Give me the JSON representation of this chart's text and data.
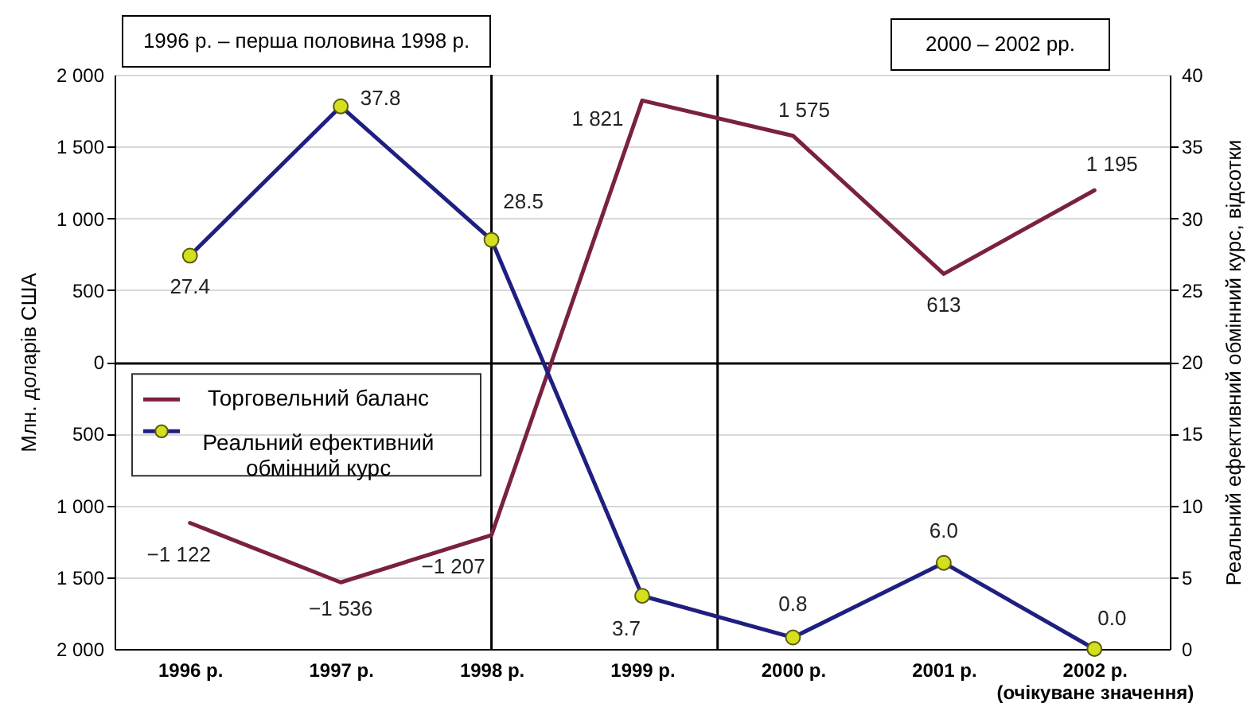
{
  "chart_data": {
    "type": "line",
    "annotations": [
      "1996 р. – перша половина 1998 р.",
      "2000 – 2002 рр."
    ],
    "ylabel": "Млн. доларів США",
    "y2label": "Реальний ефективний обмінний курс, відсотки",
    "x": [
      1996,
      1997,
      1998,
      1999,
      2000,
      2001,
      2002
    ],
    "xlim": [
      1995.5,
      2002.5
    ],
    "xticks": [
      {
        "value": 1996,
        "label": "1996 р."
      },
      {
        "value": 1997,
        "label": "1997 р."
      },
      {
        "value": 1998,
        "label": "1998 р."
      },
      {
        "value": 1999,
        "label": "1999 р."
      },
      {
        "value": 2000,
        "label": "2000 р."
      },
      {
        "value": 2001,
        "label": "2001 р."
      },
      {
        "value": 2002,
        "label": "2002 р.\n(очікуване значення)"
      }
    ],
    "ylim": [
      -2000,
      2000
    ],
    "yticks": [
      {
        "value": -2000,
        "label": "2 000"
      },
      {
        "value": -1500,
        "label": "1 500"
      },
      {
        "value": -1000,
        "label": "1 000"
      },
      {
        "value": -500,
        "label": "500"
      },
      0,
      500,
      {
        "value": 1000,
        "label": "1 000"
      },
      {
        "value": 1500,
        "label": "1 500"
      },
      {
        "value": 2000,
        "label": "2 000"
      }
    ],
    "y2lim": [
      0,
      40
    ],
    "y2ticks": [
      0,
      5,
      10,
      15,
      20,
      25,
      30,
      35,
      40
    ],
    "series": [
      {
        "name": "Торговельний баланс",
        "color": "#7a2142",
        "marker": "none",
        "values": [
          -1122,
          -1536,
          -1207,
          1821,
          1575,
          613,
          1195
        ],
        "value_labels": [
          "−1 122",
          "−1 536",
          "−1 207",
          "1 821",
          "1 575",
          "613",
          "1 195"
        ]
      },
      {
        "name": "Реальний ефективний обмінний курс",
        "color": "#1f1f80",
        "axis": "y2",
        "marker": "circle",
        "values": [
          27.4,
          37.8,
          28.5,
          3.7,
          0.8,
          6.0,
          0.0
        ],
        "value_labels": [
          "27.4",
          "37.8",
          "28.5",
          "3.7",
          "0.8",
          "6.0",
          "0.0"
        ]
      }
    ],
    "ref_lines": [
      {
        "axis": "x",
        "value": 1998,
        "color": "#000000"
      },
      {
        "axis": "x",
        "value": 1999.5,
        "color": "#000000"
      }
    ],
    "grid": "y",
    "legend": "left"
  }
}
